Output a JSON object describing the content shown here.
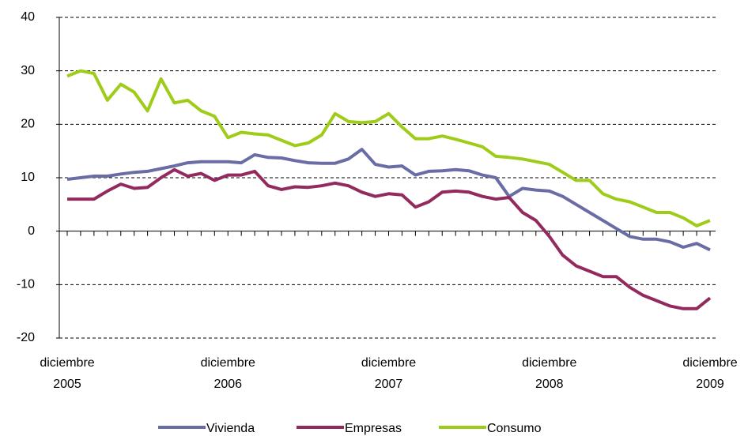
{
  "chart_data": {
    "type": "line",
    "categories": [
      "diciembre\n2005",
      null,
      null,
      null,
      null,
      null,
      null,
      null,
      null,
      null,
      null,
      null,
      "diciembre\n2006",
      null,
      null,
      null,
      null,
      null,
      null,
      null,
      null,
      null,
      null,
      null,
      "diciembre\n2007",
      null,
      null,
      null,
      null,
      null,
      null,
      null,
      null,
      null,
      null,
      null,
      "diciembre\n2008",
      null,
      null,
      null,
      null,
      null,
      null,
      null,
      null,
      null,
      null,
      null,
      "diciembre\n2009"
    ],
    "series": [
      {
        "name": "Vivienda",
        "color": "#6a6ca6",
        "values": [
          9.7,
          10,
          10.3,
          10.3,
          10.7,
          11,
          11.2,
          11.7,
          12.2,
          12.8,
          13,
          13,
          13,
          12.8,
          14.3,
          13.8,
          13.7,
          13.2,
          12.8,
          12.7,
          12.7,
          13.5,
          15.3,
          12.5,
          12,
          12.2,
          10.5,
          11.2,
          11.3,
          11.5,
          11.3,
          10.5,
          10,
          6.5,
          8,
          7.7,
          7.5,
          6.5,
          5,
          3.5,
          2,
          0.5,
          -1,
          -1.5,
          -1.5,
          -2,
          -3,
          -2.3,
          -3.5
        ]
      },
      {
        "name": "Empresas",
        "color": "#922a5e",
        "values": [
          6,
          6,
          6,
          7.5,
          8.8,
          8,
          8.2,
          10,
          11.5,
          10.3,
          10.8,
          9.5,
          10.5,
          10.5,
          11.2,
          8.5,
          7.8,
          8.3,
          8.2,
          8.5,
          9,
          8.5,
          7.3,
          6.5,
          7,
          6.8,
          4.5,
          5.5,
          7.3,
          7.5,
          7.3,
          6.5,
          6,
          6.3,
          3.5,
          2,
          -1,
          -4.5,
          -6.5,
          -7.5,
          -8.5,
          -8.5,
          -10.5,
          -12,
          -13,
          -14,
          -14.5,
          -14.5,
          -12.5
        ]
      },
      {
        "name": "Consumo",
        "color": "#9fcc19",
        "values": [
          29,
          30,
          29.5,
          24.5,
          27.5,
          26,
          22.5,
          28.5,
          24,
          24.5,
          22.5,
          21.5,
          17.5,
          18.5,
          18.2,
          18,
          17,
          16,
          16.5,
          18,
          22,
          20.5,
          20.3,
          20.5,
          22,
          19.5,
          17.3,
          17.3,
          17.8,
          17.2,
          16.5,
          15.8,
          14,
          13.8,
          13.5,
          13,
          12.5,
          11,
          9.5,
          9.5,
          7,
          6,
          5.5,
          4.5,
          3.5,
          3.5,
          2.5,
          1,
          2
        ]
      }
    ],
    "ylim": [
      -20,
      40
    ],
    "yticks": [
      -20,
      -10,
      0,
      10,
      20,
      30,
      40
    ],
    "grid": true
  }
}
